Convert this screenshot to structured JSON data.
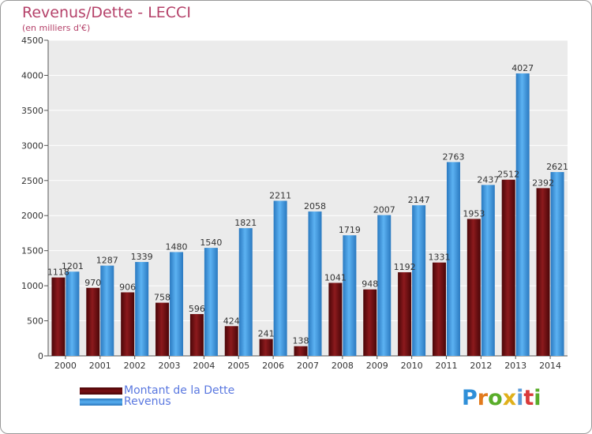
{
  "chart_data": {
    "type": "bar",
    "title": "Revenus/Dette - LECCI",
    "subtitle": "(en milliers d'€)",
    "categories": [
      "2000",
      "2001",
      "2002",
      "2003",
      "2004",
      "2005",
      "2006",
      "2007",
      "2008",
      "2009",
      "2010",
      "2011",
      "2012",
      "2013",
      "2014"
    ],
    "series": [
      {
        "name": "Montant de la Dette",
        "color": "#7a0f12",
        "values": [
          1118,
          970,
          906,
          758,
          596,
          424,
          241,
          138,
          1041,
          948,
          1192,
          1331,
          1953,
          2512,
          2392
        ]
      },
      {
        "name": "Revenus",
        "color": "#3d97de",
        "values": [
          1201,
          1287,
          1339,
          1480,
          1540,
          1821,
          2211,
          2058,
          1719,
          2007,
          2147,
          2763,
          2437,
          4027,
          2621
        ]
      }
    ],
    "value_labels": [
      [
        "1118",
        "970",
        "906",
        "758",
        "596",
        "424",
        "241",
        "138",
        "1041",
        "948",
        "1192",
        "1331",
        "1953",
        "2512",
        "2392"
      ],
      [
        "1201",
        "1287",
        "1339",
        "1480",
        "1540",
        "1821",
        "2211",
        "2058",
        "1719",
        "2007",
        "2147",
        "2763",
        "2437",
        "4027",
        "2621"
      ]
    ],
    "yticks": [
      "0",
      "500",
      "1000",
      "1500",
      "2000",
      "2500",
      "3000",
      "3500",
      "4000",
      "4500"
    ],
    "ylim": [
      0,
      4500
    ],
    "grid": true,
    "legend_position": "bottom-left"
  },
  "brand": {
    "letters": [
      "P",
      "r",
      "o",
      "x",
      "i",
      "t",
      "i"
    ],
    "colors": [
      "#2f8fd8",
      "#e27a1c",
      "#59ad2a",
      "#e0b01b",
      "#5a9ad8",
      "#d93a3a",
      "#59ad2a"
    ]
  }
}
